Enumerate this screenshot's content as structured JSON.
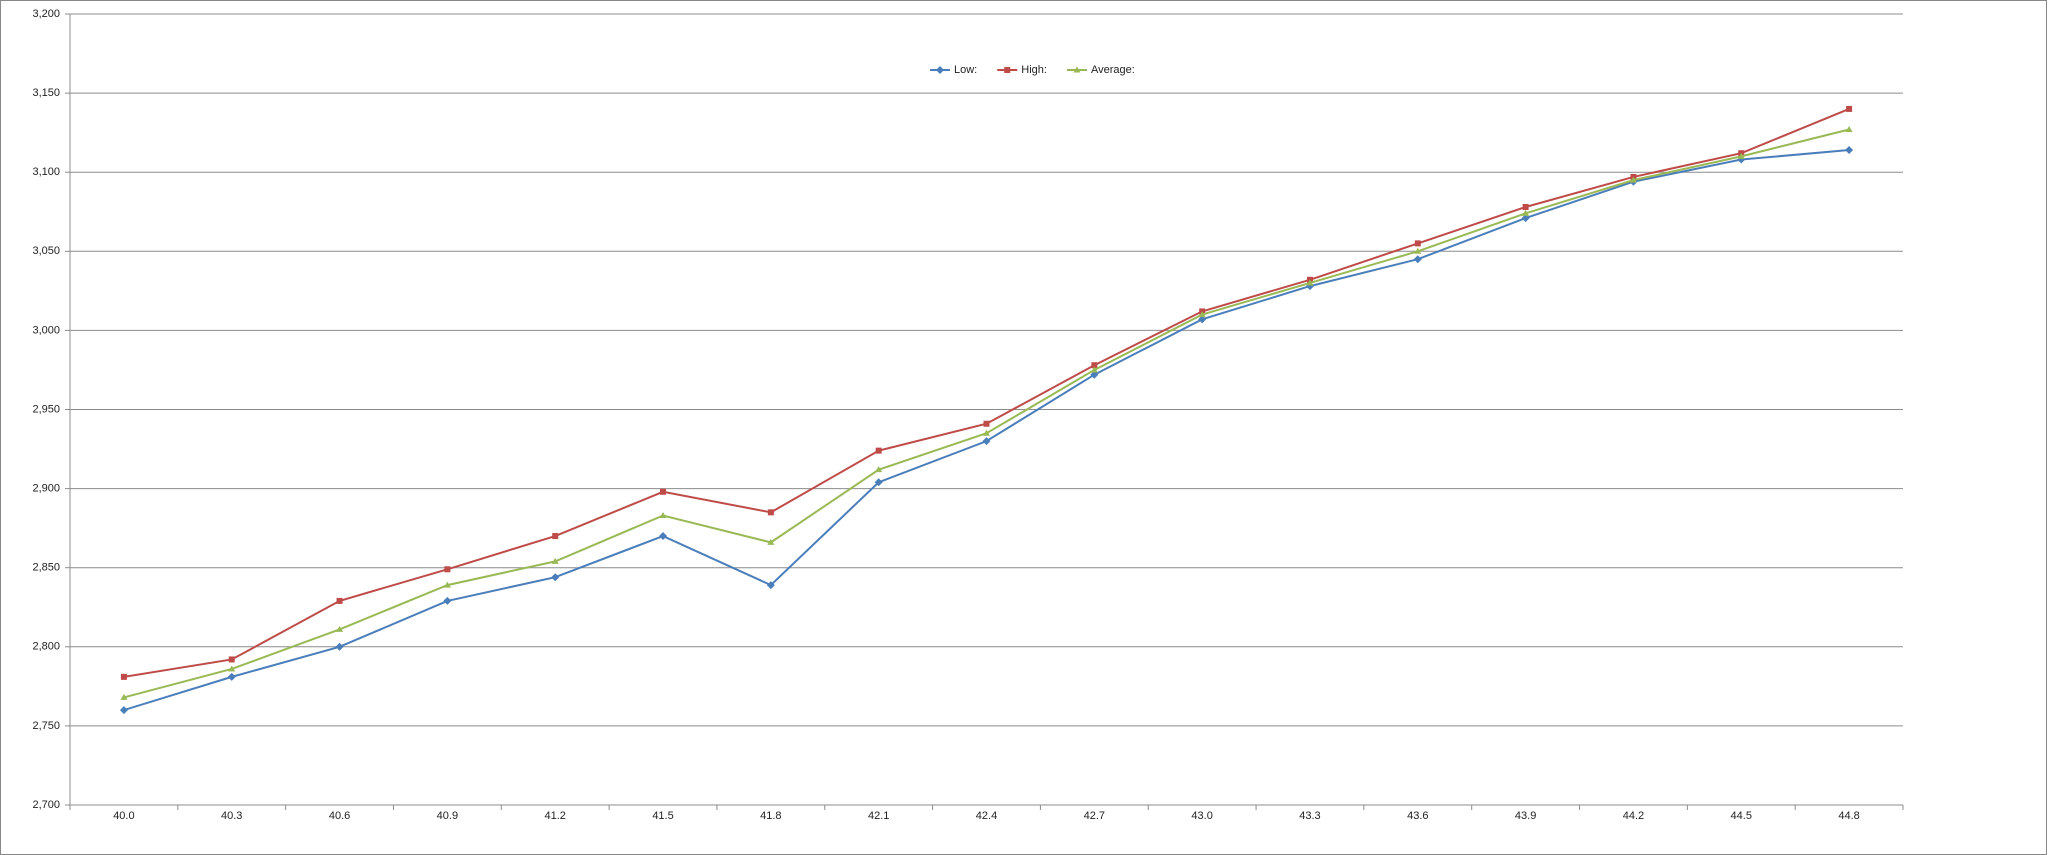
{
  "chart_data": {
    "type": "line",
    "categories": [
      "40.0",
      "40.3",
      "40.6",
      "40.9",
      "41.2",
      "41.5",
      "41.8",
      "42.1",
      "42.4",
      "42.7",
      "43.0",
      "43.3",
      "43.6",
      "43.9",
      "44.2",
      "44.5",
      "44.8"
    ],
    "series": [
      {
        "name": "Low:",
        "color": "#4a7ebb",
        "marker": "diamond",
        "values": [
          2760,
          2781,
          2800,
          2829,
          2844,
          2870,
          2839,
          2904,
          2930,
          2972,
          3007,
          3028,
          3045,
          3071,
          3094,
          3108,
          3114
        ]
      },
      {
        "name": "High:",
        "color": "#be4b48",
        "marker": "square",
        "values": [
          2781,
          2792,
          2829,
          2849,
          2870,
          2898,
          2885,
          2924,
          2941,
          2978,
          3012,
          3032,
          3055,
          3078,
          3097,
          3112,
          3140
        ]
      },
      {
        "name": "Average:",
        "color": "#98b954",
        "marker": "triangle",
        "values": [
          2768,
          2786,
          2811,
          2839,
          2854,
          2883,
          2866,
          2912,
          2935,
          2975,
          3010,
          3030,
          3050,
          3074,
          3095,
          3110,
          3127
        ]
      }
    ],
    "ylim": [
      2700,
      3200
    ],
    "yticks": [
      {
        "value": 2700,
        "label": "2,700"
      },
      {
        "value": 2750,
        "label": "2,750"
      },
      {
        "value": 2800,
        "label": "2,800"
      },
      {
        "value": 2850,
        "label": "2,850"
      },
      {
        "value": 2900,
        "label": "2,900"
      },
      {
        "value": 2950,
        "label": "2,950"
      },
      {
        "value": 3000,
        "label": "3,000"
      },
      {
        "value": 3050,
        "label": "3,050"
      },
      {
        "value": 3100,
        "label": "3,100"
      },
      {
        "value": 3150,
        "label": "3,150"
      },
      {
        "value": 3200,
        "label": "3,200"
      }
    ],
    "grid": true,
    "legend": "top"
  }
}
